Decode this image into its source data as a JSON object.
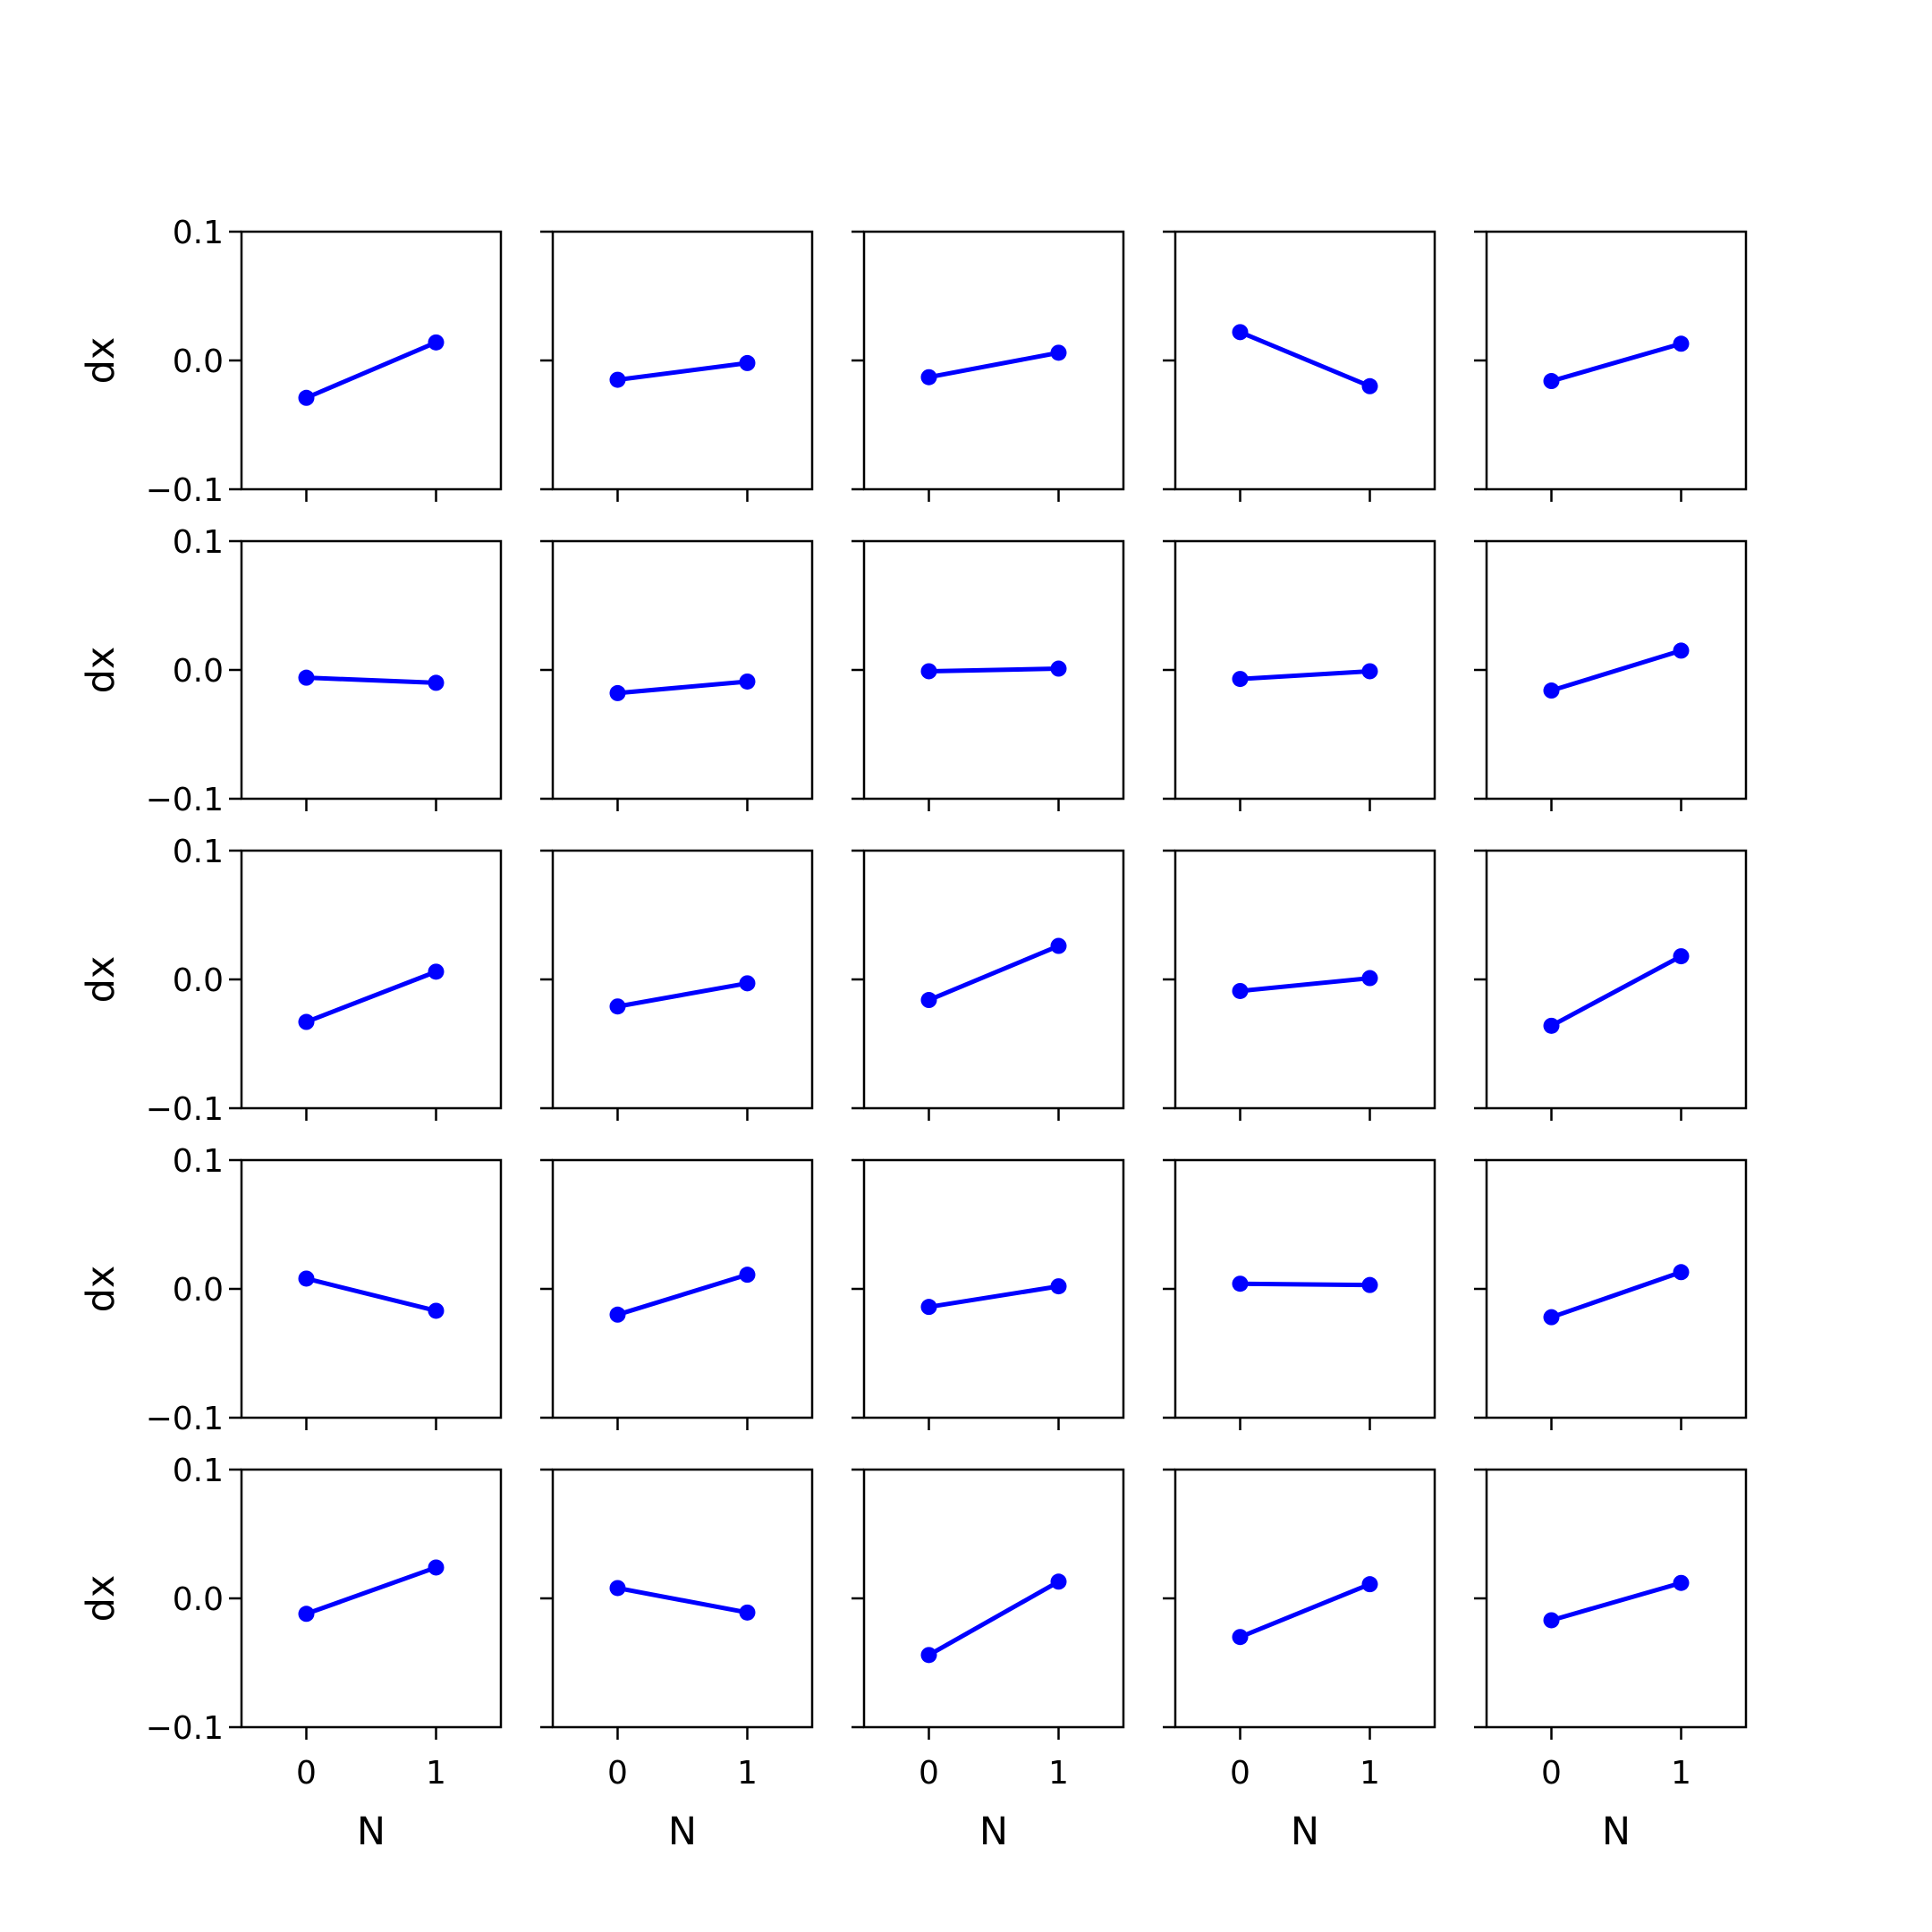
{
  "chart_data": {
    "type": "line",
    "layout": "5x5 grid of subplots, shared x and y axes",
    "xlabel": "N",
    "ylabel": "dx",
    "xlim": [
      -0.5,
      1.5
    ],
    "ylim": [
      -0.1,
      0.1
    ],
    "x_ticks": [
      0,
      1
    ],
    "x_tick_labels": [
      "0",
      "1"
    ],
    "y_ticks": [
      0.1,
      0.0,
      -0.1
    ],
    "y_tick_labels": [
      "0.1",
      "0.0",
      "−0.1"
    ],
    "grid": false,
    "legend": "none",
    "line_color": "#0000ff",
    "marker": "circle",
    "x": [
      0,
      1
    ],
    "panels": [
      [
        [
          -0.029,
          0.014
        ],
        [
          -0.015,
          -0.002
        ],
        [
          -0.013,
          0.006
        ],
        [
          0.022,
          -0.02
        ],
        [
          -0.016,
          0.013
        ]
      ],
      [
        [
          -0.006,
          -0.01
        ],
        [
          -0.018,
          -0.009
        ],
        [
          -0.001,
          0.001
        ],
        [
          -0.007,
          -0.001
        ],
        [
          -0.016,
          0.015
        ]
      ],
      [
        [
          -0.033,
          0.006
        ],
        [
          -0.021,
          -0.003
        ],
        [
          -0.016,
          0.026
        ],
        [
          -0.009,
          0.001
        ],
        [
          -0.036,
          0.018
        ]
      ],
      [
        [
          0.008,
          -0.017
        ],
        [
          -0.02,
          0.011
        ],
        [
          -0.014,
          0.002
        ],
        [
          0.004,
          0.003
        ],
        [
          -0.022,
          0.013
        ]
      ],
      [
        [
          -0.012,
          0.024
        ],
        [
          0.008,
          -0.011
        ],
        [
          -0.044,
          0.013
        ],
        [
          -0.03,
          0.011
        ],
        [
          -0.017,
          0.012
        ]
      ]
    ]
  }
}
